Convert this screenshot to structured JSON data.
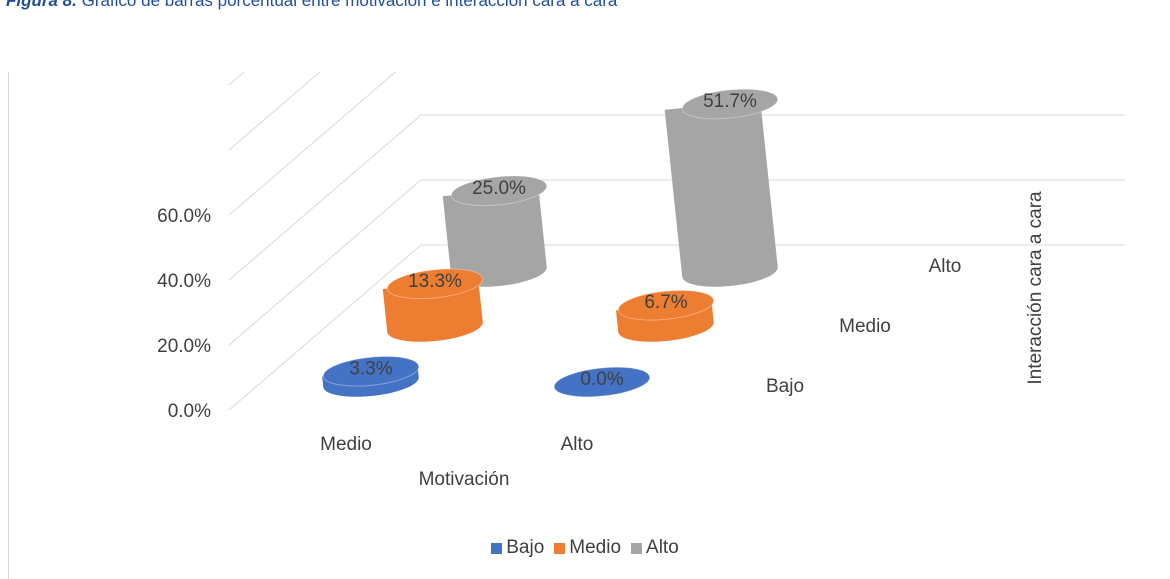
{
  "caption": {
    "label": "Figura 8.",
    "text": "Gráfico de barras porcentual entre motivación e interacción cara a cara"
  },
  "chart_data": {
    "type": "bar",
    "subtype": "3d-cylinder",
    "x": {
      "label": "Motivación",
      "categories": [
        "Medio",
        "Alto"
      ]
    },
    "depth": {
      "label": "Interacción cara a cara",
      "categories": [
        "Bajo",
        "Medio",
        "Alto"
      ]
    },
    "y": {
      "ticks": [
        "0.0%",
        "20.0%",
        "40.0%",
        "60.0%"
      ],
      "range": [
        0,
        60
      ],
      "unit": "%"
    },
    "series": [
      {
        "name": "Bajo",
        "color": "#4472c4",
        "values": [
          3.3,
          0.0
        ],
        "labels": [
          "3.3%",
          "0.0%"
        ]
      },
      {
        "name": "Medio",
        "color": "#ed7d31",
        "values": [
          13.3,
          6.7
        ],
        "labels": [
          "13.3%",
          "6.7%"
        ]
      },
      {
        "name": "Alto",
        "color": "#a5a5a5",
        "values": [
          25.0,
          51.7
        ],
        "labels": [
          "25.0%",
          "51.7%"
        ]
      }
    ],
    "grid": true,
    "legend_position": "bottom"
  }
}
